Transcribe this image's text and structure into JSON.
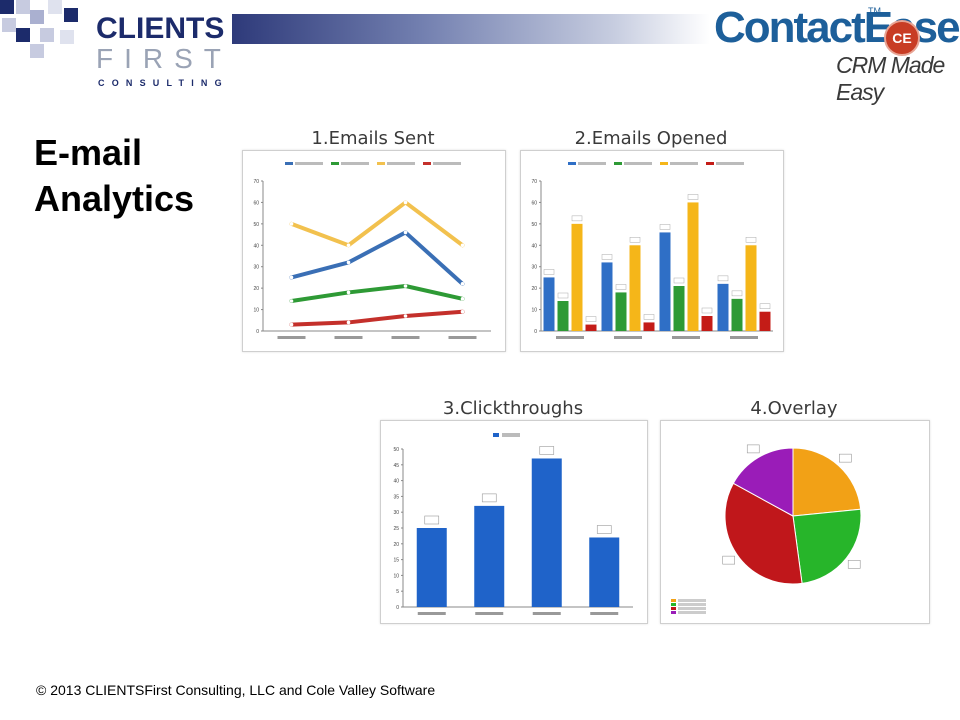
{
  "header": {
    "logo_name": "CLIENTS",
    "logo_first": "FIRST",
    "logo_consulting": "CONSULTING",
    "product_name": "ContactEase",
    "product_tm": "TM",
    "product_badge": "CE",
    "product_tagline": "CRM Made Easy",
    "accent_color": "#1c2b6b",
    "product_color": "#1d5f9a"
  },
  "slide": {
    "title_line1": "E-mail",
    "title_line2": "Analytics"
  },
  "footer": {
    "copyright": "© 2013 CLIENTSFirst Consulting, LLC and Cole Valley Software"
  },
  "chart_data": [
    {
      "type": "line",
      "title": "1.Emails Sent",
      "categories": [
        "",
        "",
        "",
        ""
      ],
      "ylim": [
        0,
        70
      ],
      "yticks": [
        0,
        10,
        20,
        30,
        40,
        50,
        60,
        70
      ],
      "legend": "top",
      "series": [
        {
          "values": [
            25,
            32,
            46,
            22
          ],
          "color": "#3a6fb5"
        },
        {
          "values": [
            14,
            18,
            21,
            15
          ],
          "color": "#2e9a35"
        },
        {
          "values": [
            50,
            40,
            60,
            40
          ],
          "color": "#f2c14e"
        },
        {
          "values": [
            3,
            4,
            7,
            9
          ],
          "color": "#c4302b"
        }
      ]
    },
    {
      "type": "bar",
      "title": "2.Emails Opened",
      "categories": [
        "",
        "",
        "",
        ""
      ],
      "ylim": [
        0,
        70
      ],
      "yticks": [
        0,
        10,
        20,
        30,
        40,
        50,
        60,
        70
      ],
      "legend": "top",
      "series": [
        {
          "values": [
            25,
            32,
            46,
            22
          ],
          "color": "#2f6fc6"
        },
        {
          "values": [
            14,
            18,
            21,
            15
          ],
          "color": "#2e9a35"
        },
        {
          "values": [
            50,
            40,
            60,
            40
          ],
          "color": "#f5b619"
        },
        {
          "values": [
            3,
            4,
            7,
            9
          ],
          "color": "#c41c17"
        }
      ]
    },
    {
      "type": "bar",
      "title": "3.Clickthroughs",
      "categories": [
        "",
        "",
        "",
        ""
      ],
      "ylim": [
        0,
        50
      ],
      "yticks": [
        0,
        5,
        10,
        15,
        20,
        25,
        30,
        35,
        40,
        45,
        50
      ],
      "legend": "top",
      "series": [
        {
          "values": [
            25,
            32,
            47,
            22
          ],
          "color": "#1f63c9"
        }
      ]
    },
    {
      "type": "pie",
      "title": "4.Overlay",
      "legend": "bottom-left",
      "values": [
        22,
        23,
        33,
        16
      ],
      "colors": [
        "#f2a116",
        "#27b52a",
        "#c0171b",
        "#9a1cb8"
      ]
    }
  ]
}
